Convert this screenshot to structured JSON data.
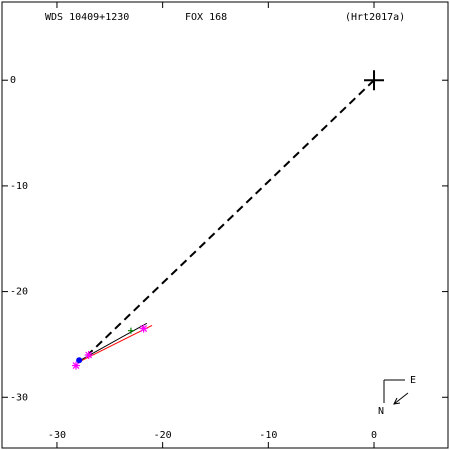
{
  "chart_data": {
    "type": "scatter",
    "title": "WDS 10409+1230",
    "subtitle": "FOX 168",
    "reference": "(Hrt2017a)",
    "xlim": [
      -35.2,
      7.0
    ],
    "ylim": [
      -34.8,
      7.4
    ],
    "xticks": [
      -30,
      -20,
      -10,
      0
    ],
    "yticks": [
      0,
      -10,
      -20,
      -30
    ],
    "compass": {
      "east": "E",
      "north": "N"
    },
    "series": [
      {
        "mark": "dashed",
        "color": "#000000",
        "x": [
          0,
          -27.3
        ],
        "y": [
          0,
          -26.2
        ]
      },
      {
        "mark": "line",
        "color": "#000000",
        "x": [
          -27.8,
          -21.5
        ],
        "y": [
          -26.5,
          -23.0
        ]
      },
      {
        "mark": "line",
        "color": "#ff0000",
        "x": [
          -27.8,
          -21.0
        ],
        "y": [
          -26.6,
          -23.2
        ]
      },
      {
        "mark": "star",
        "color": "#ff00ff",
        "x": [
          -28.2,
          -21.8,
          -27.0
        ],
        "y": [
          -27.0,
          -23.5,
          -26.0
        ]
      },
      {
        "mark": "dot",
        "color": "#0000ff",
        "x": [
          -27.9
        ],
        "y": [
          -26.5
        ]
      },
      {
        "mark": "plus",
        "color": "#008000",
        "x": [
          -23.0
        ],
        "y": [
          -23.7
        ]
      },
      {
        "mark": "cross",
        "color": "#000000",
        "x": [
          0
        ],
        "y": [
          0
        ]
      }
    ]
  }
}
